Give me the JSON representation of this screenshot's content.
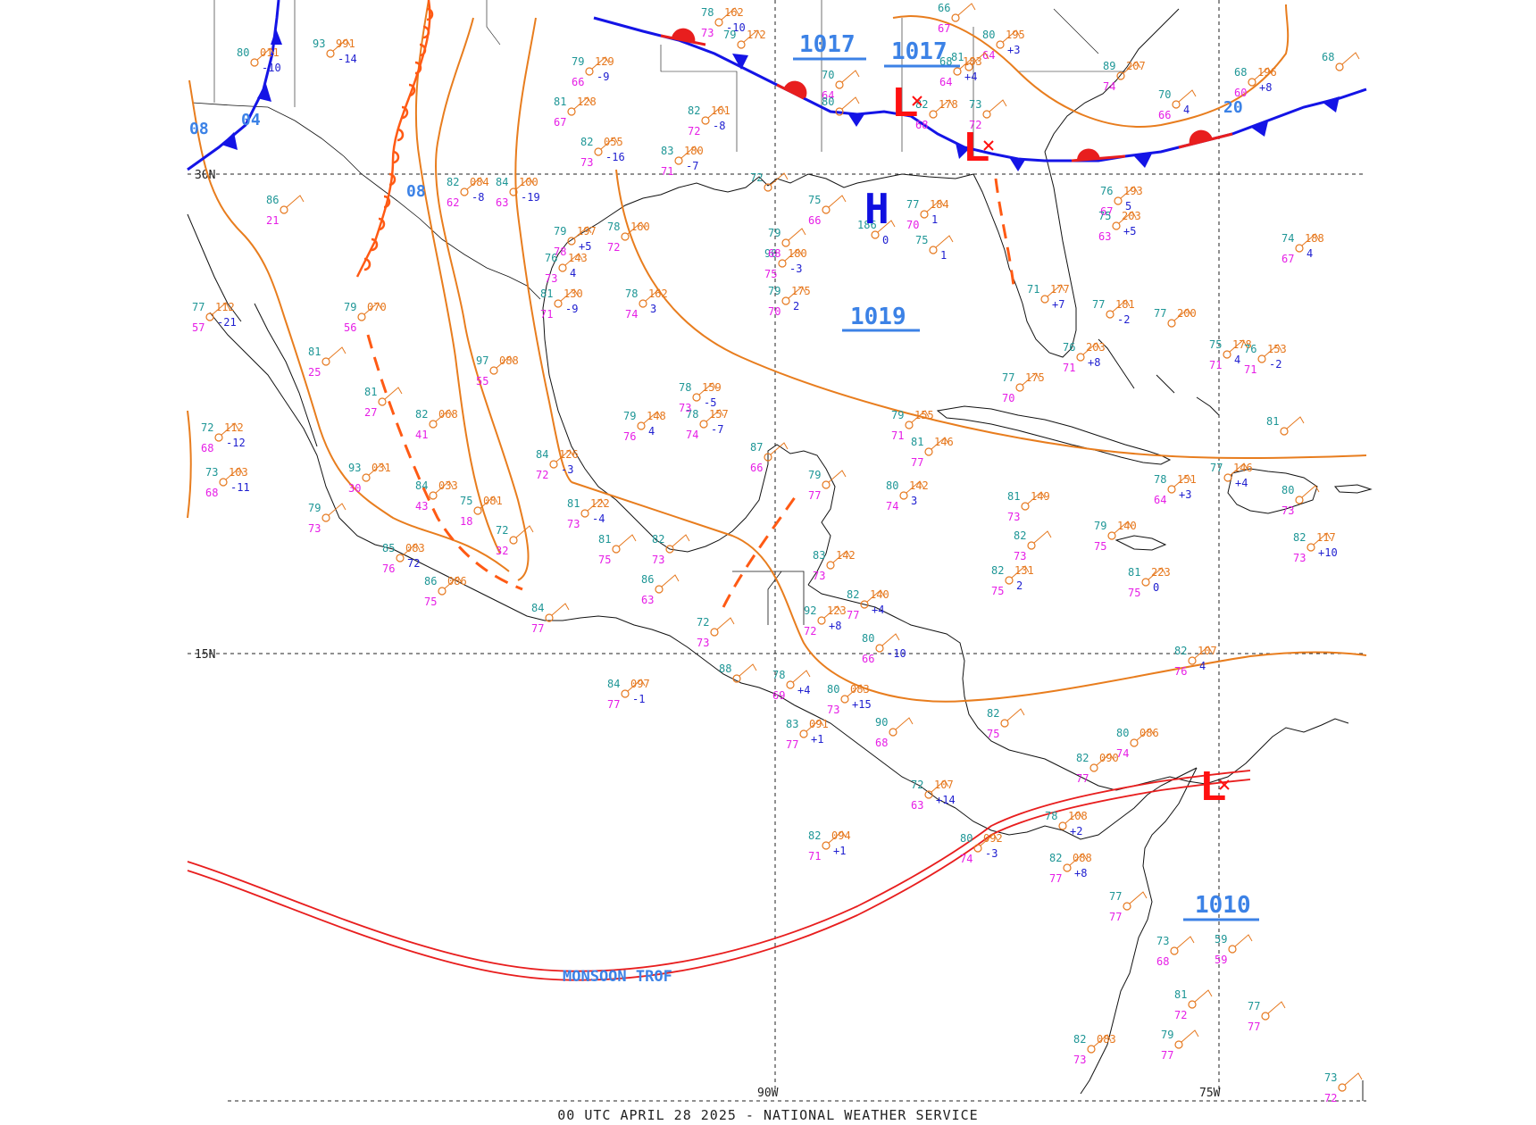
{
  "map": {
    "footer": "00 UTC APRIL 28 2025 - NATIONAL WEATHER SERVICE",
    "grid": {
      "lat_labels": [
        "30N",
        "15N"
      ],
      "lon_labels": [
        "90W",
        "75W"
      ]
    },
    "pressure_centers": [
      {
        "type": "H",
        "color": "#1010e0"
      },
      {
        "type": "L",
        "color": "#ff1010"
      },
      {
        "type": "L",
        "color": "#ff1010"
      },
      {
        "type": "L",
        "color": "#ff1010"
      }
    ],
    "pressure_values": [
      "1017",
      "1017",
      "1019",
      "1010"
    ],
    "isobar_values": [
      "08",
      "04",
      "08",
      "20"
    ],
    "feature_labels": {
      "monsoon": "MONSOON TROF"
    },
    "colors": {
      "isobar": "#e87d1e",
      "cold_front": "#1414e6",
      "warm_front": "#e81e1e",
      "trough": "#ff5a14",
      "label_blue": "#3c82e6",
      "obs_temp_teal": "#1e9696",
      "obs_dew_magenta": "#e61ee6",
      "obs_press_orange": "#e6781e",
      "obs_tend_blue": "#2020d0",
      "coastline": "#111111"
    },
    "stations": [
      [
        "82",
        "161",
        "72",
        "-8"
      ],
      [
        "79",
        "129",
        "66",
        "-9"
      ],
      [
        "82",
        "055",
        "73",
        "-16"
      ],
      [
        "81",
        "128",
        "67",
        ""
      ],
      [
        "83",
        "180",
        "71",
        "-7"
      ],
      [
        "84",
        "100",
        "63",
        "-19"
      ],
      [
        "82",
        "084",
        "62",
        "-8"
      ],
      [
        "93",
        "991",
        "",
        "-14"
      ],
      [
        "80",
        "011",
        "",
        "-10"
      ],
      [
        "76",
        "143",
        "73",
        "4"
      ],
      [
        "78",
        "160",
        "72",
        ""
      ],
      [
        "79",
        "197",
        "78",
        "+5"
      ],
      [
        "78",
        "162",
        "74",
        "3"
      ],
      [
        "81",
        "130",
        "71",
        "-9"
      ],
      [
        "79",
        "070",
        "56",
        ""
      ],
      [
        "81",
        "",
        "25",
        ""
      ],
      [
        "86",
        "",
        "21",
        ""
      ],
      [
        "81",
        "",
        "27",
        ""
      ],
      [
        "82",
        "068",
        "41",
        ""
      ],
      [
        "97",
        "088",
        "55",
        ""
      ],
      [
        "84",
        "033",
        "43",
        ""
      ],
      [
        "75",
        "081",
        "18",
        ""
      ],
      [
        "72",
        "",
        "32",
        ""
      ],
      [
        "93",
        "031",
        "30",
        ""
      ],
      [
        "77",
        "112",
        "57",
        "-21"
      ],
      [
        "72",
        "112",
        "68",
        "-12"
      ],
      [
        "73",
        "103",
        "68",
        "-11"
      ],
      [
        "79",
        "",
        "73",
        ""
      ],
      [
        "85",
        "083",
        "76",
        "72"
      ],
      [
        "86",
        "086",
        "75",
        ""
      ],
      [
        "84",
        "",
        "77",
        ""
      ],
      [
        "81",
        "",
        "75",
        ""
      ],
      [
        "82",
        "",
        "73",
        ""
      ],
      [
        "86",
        "",
        "63",
        ""
      ],
      [
        "84",
        "126",
        "72",
        "-3"
      ],
      [
        "81",
        "122",
        "73",
        "-4"
      ],
      [
        "79",
        "148",
        "76",
        "4"
      ],
      [
        "78",
        "157",
        "74",
        "-7"
      ],
      [
        "78",
        "159",
        "73",
        "-5"
      ],
      [
        "87",
        "",
        "66",
        ""
      ],
      [
        "79",
        "",
        "77",
        ""
      ],
      [
        "80",
        "142",
        "74",
        "3"
      ],
      [
        "83",
        "142",
        "73",
        ""
      ],
      [
        "82",
        "140",
        "77",
        "+4"
      ],
      [
        "92",
        "123",
        "72",
        "+8"
      ],
      [
        "80",
        "",
        "66",
        "-10"
      ],
      [
        "72",
        "",
        "73",
        ""
      ],
      [
        "88",
        "",
        "",
        ""
      ],
      [
        "78",
        "",
        "69",
        "+4"
      ],
      [
        "80",
        "083",
        "73",
        "+15"
      ],
      [
        "84",
        "097",
        "77",
        "-1"
      ],
      [
        "83",
        "091",
        "77",
        "+1"
      ],
      [
        "90",
        "",
        "68",
        ""
      ],
      [
        "72",
        "107",
        "63",
        "+14"
      ],
      [
        "82",
        "094",
        "71",
        "+1"
      ],
      [
        "80",
        "092",
        "74",
        "-3"
      ],
      [
        "78",
        "108",
        "",
        "+2"
      ],
      [
        "82",
        "088",
        "77",
        "+8"
      ],
      [
        "82",
        "090",
        "77",
        ""
      ],
      [
        "80",
        "086",
        "74",
        ""
      ],
      [
        "82",
        "",
        "75",
        ""
      ],
      [
        "82",
        "107",
        "76",
        "4"
      ],
      [
        "77",
        "",
        "77",
        ""
      ],
      [
        "73",
        "",
        "68",
        ""
      ],
      [
        "81",
        "",
        "72",
        ""
      ],
      [
        "79",
        "",
        "77",
        ""
      ],
      [
        "82",
        "083",
        "73",
        ""
      ],
      [
        "59",
        "",
        "59",
        ""
      ],
      [
        "77",
        "",
        "77",
        ""
      ],
      [
        "73",
        "",
        "72",
        ""
      ],
      [
        "82",
        "131",
        "75",
        "2"
      ],
      [
        "81",
        "223",
        "75",
        "0"
      ],
      [
        "79",
        "140",
        "75",
        ""
      ],
      [
        "81",
        "149",
        "73",
        ""
      ],
      [
        "82",
        "",
        "73",
        ""
      ],
      [
        "78",
        "151",
        "64",
        "+3"
      ],
      [
        "77",
        "146",
        "",
        "+4"
      ],
      [
        "80",
        "",
        "73",
        ""
      ],
      [
        "82",
        "117",
        "73",
        "+10"
      ],
      [
        "75",
        "178",
        "71",
        "4"
      ],
      [
        "76",
        "153",
        "71",
        "-2"
      ],
      [
        "81",
        "",
        "",
        ""
      ],
      [
        "74",
        "188",
        "67",
        "4"
      ],
      [
        "79",
        "155",
        "71",
        ""
      ],
      [
        "81",
        "146",
        "77",
        ""
      ],
      [
        "77",
        "175",
        "70",
        ""
      ],
      [
        "76",
        "203",
        "71",
        "+8"
      ],
      [
        "77",
        "181",
        "",
        "-2"
      ],
      [
        "77",
        "200",
        "",
        ""
      ],
      [
        "76",
        "193",
        "67",
        "5"
      ],
      [
        "75",
        "203",
        "63",
        "+5"
      ],
      [
        "71",
        "177",
        "",
        "+7"
      ],
      [
        "77",
        "184",
        "70",
        "1"
      ],
      [
        "75",
        "",
        "",
        "1"
      ],
      [
        "186",
        "",
        "",
        "0"
      ],
      [
        "75",
        "",
        "66",
        ""
      ],
      [
        "79",
        "175",
        "70",
        "2"
      ],
      [
        "90",
        "180",
        "75",
        "-3"
      ],
      [
        "79",
        "",
        "68",
        ""
      ],
      [
        "72",
        "",
        "",
        ""
      ],
      [
        "70",
        "",
        "66",
        "4"
      ],
      [
        "68",
        "196",
        "60",
        "+8"
      ],
      [
        "68",
        "",
        "",
        ""
      ],
      [
        "89",
        "207",
        "74",
        ""
      ],
      [
        "68",
        "183",
        "64",
        "+4"
      ],
      [
        "66",
        "",
        "67",
        ""
      ],
      [
        "80",
        "195",
        "64",
        "+3"
      ],
      [
        "73",
        "",
        "72",
        ""
      ],
      [
        "82",
        "178",
        "68",
        ""
      ],
      [
        "78",
        "162",
        "73",
        "-10"
      ],
      [
        "79",
        "172",
        "",
        ""
      ],
      [
        "70",
        "",
        "64",
        ""
      ],
      [
        "80",
        "",
        "",
        ""
      ],
      [
        "81",
        "",
        "",
        ""
      ]
    ]
  }
}
